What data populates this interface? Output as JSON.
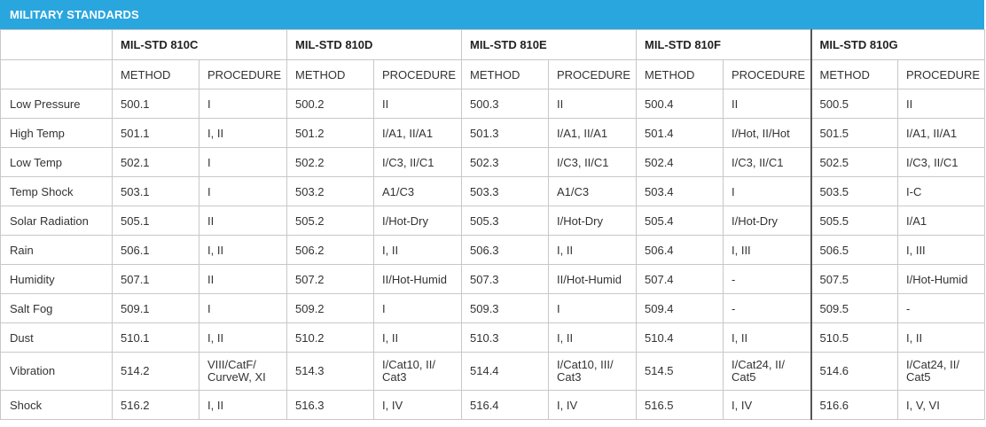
{
  "title": "MILITARY STANDARDS",
  "standards": [
    "MIL-STD 810C",
    "MIL-STD 810D",
    "MIL-STD 810E",
    "MIL-STD 810F",
    "MIL-STD 810G"
  ],
  "subheaders": {
    "method": "METHOD",
    "procedure": "PROCEDURE"
  },
  "rows": [
    {
      "label": "Low Pressure",
      "cells": [
        [
          "500.1",
          "I"
        ],
        [
          "500.2",
          "II"
        ],
        [
          "500.3",
          "II"
        ],
        [
          "500.4",
          "II"
        ],
        [
          "500.5",
          "II"
        ]
      ]
    },
    {
      "label": "High Temp",
      "cells": [
        [
          "501.1",
          "I, II"
        ],
        [
          "501.2",
          "I/A1, II/A1"
        ],
        [
          "501.3",
          "I/A1, II/A1"
        ],
        [
          "501.4",
          "I/Hot, II/Hot"
        ],
        [
          "501.5",
          "I/A1, II/A1"
        ]
      ]
    },
    {
      "label": "Low Temp",
      "cells": [
        [
          "502.1",
          "I"
        ],
        [
          "502.2",
          "I/C3, II/C1"
        ],
        [
          "502.3",
          "I/C3, II/C1"
        ],
        [
          "502.4",
          "I/C3, II/C1"
        ],
        [
          "502.5",
          "I/C3, II/C1"
        ]
      ]
    },
    {
      "label": "Temp Shock",
      "cells": [
        [
          "503.1",
          "I"
        ],
        [
          "503.2",
          "A1/C3"
        ],
        [
          "503.3",
          "A1/C3"
        ],
        [
          "503.4",
          "I"
        ],
        [
          "503.5",
          "I-C"
        ]
      ]
    },
    {
      "label": "Solar Radiation",
      "cells": [
        [
          "505.1",
          "II"
        ],
        [
          "505.2",
          "I/Hot-Dry"
        ],
        [
          "505.3",
          "I/Hot-Dry"
        ],
        [
          "505.4",
          "I/Hot-Dry"
        ],
        [
          "505.5",
          "I/A1"
        ]
      ]
    },
    {
      "label": "Rain",
      "cells": [
        [
          "506.1",
          "I, II"
        ],
        [
          "506.2",
          "I, II"
        ],
        [
          "506.3",
          "I, II"
        ],
        [
          "506.4",
          "I, III"
        ],
        [
          "506.5",
          "I, III"
        ]
      ]
    },
    {
      "label": "Humidity",
      "cells": [
        [
          "507.1",
          "II"
        ],
        [
          "507.2",
          "II/Hot-Humid"
        ],
        [
          "507.3",
          "II/Hot-Humid"
        ],
        [
          "507.4",
          "-"
        ],
        [
          "507.5",
          "I/Hot-Humid"
        ]
      ]
    },
    {
      "label": "Salt Fog",
      "cells": [
        [
          "509.1",
          "I"
        ],
        [
          "509.2",
          "I"
        ],
        [
          "509.3",
          "I"
        ],
        [
          "509.4",
          "-"
        ],
        [
          "509.5",
          "-"
        ]
      ]
    },
    {
      "label": "Dust",
      "cells": [
        [
          "510.1",
          "I, II"
        ],
        [
          "510.2",
          "I, II"
        ],
        [
          "510.3",
          "I, II"
        ],
        [
          "510.4",
          "I, II"
        ],
        [
          "510.5",
          "I, II"
        ]
      ]
    },
    {
      "label": "Vibration",
      "cells": [
        [
          "514.2",
          "VIII/CatF/\nCurveW, XI"
        ],
        [
          "514.3",
          "I/Cat10, II/\nCat3"
        ],
        [
          "514.4",
          "I/Cat10, III/\nCat3"
        ],
        [
          "514.5",
          "I/Cat24, II/\nCat5"
        ],
        [
          "514.6",
          "I/Cat24, II/\nCat5"
        ]
      ]
    },
    {
      "label": "Shock",
      "cells": [
        [
          "516.2",
          "I, II"
        ],
        [
          "516.3",
          "I, IV"
        ],
        [
          "516.4",
          "I, IV"
        ],
        [
          "516.5",
          "I, IV"
        ],
        [
          "516.6",
          "I, V, VI"
        ]
      ]
    }
  ],
  "colors": {
    "banner": "#2aa6df",
    "grid": "#c8c8c8"
  }
}
